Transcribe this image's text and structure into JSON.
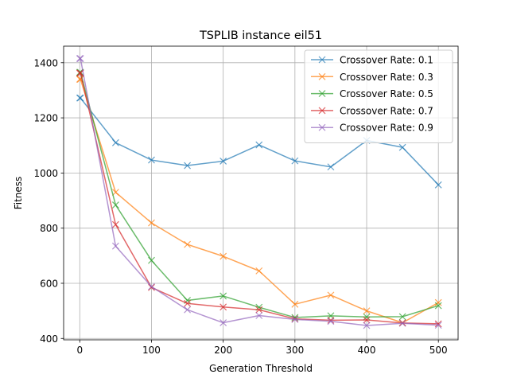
{
  "chart_data": {
    "type": "line",
    "title": "TSPLIB instance eil51",
    "xlabel": "Generation Threshold",
    "ylabel": "Fitness",
    "xlim": [
      -22.5,
      527.5
    ],
    "ylim": [
      395,
      1460
    ],
    "xticks": [
      0,
      100,
      200,
      300,
      400,
      500
    ],
    "yticks": [
      400,
      600,
      800,
      1000,
      1200,
      1400
    ],
    "grid": true,
    "legend_position": "top-right",
    "marker": "x",
    "x": [
      0,
      1,
      50,
      100,
      150,
      200,
      250,
      300,
      350,
      400,
      450,
      500
    ],
    "series": [
      {
        "name": "Crossover Rate: 0.1",
        "color": "#1f77b4",
        "values": [
          1272,
          1272,
          1110,
          1047,
          1027,
          1043,
          1102,
          1044,
          1022,
          1118,
          1093,
          957
        ]
      },
      {
        "name": "Crossover Rate: 0.3",
        "color": "#ff7f0e",
        "values": [
          1340,
          1340,
          930,
          819,
          741,
          698,
          645,
          524,
          557,
          500,
          457,
          530
        ]
      },
      {
        "name": "Crossover Rate: 0.5",
        "color": "#2ca02c",
        "values": [
          1365,
          1365,
          884,
          683,
          538,
          554,
          513,
          476,
          482,
          478,
          479,
          519
        ]
      },
      {
        "name": "Crossover Rate: 0.7",
        "color": "#d62728",
        "values": [
          1362,
          1362,
          813,
          585,
          527,
          514,
          504,
          471,
          466,
          467,
          456,
          453
        ]
      },
      {
        "name": "Crossover Rate: 0.9",
        "color": "#9467bd",
        "values": [
          1415,
          1415,
          735,
          588,
          504,
          457,
          483,
          469,
          462,
          447,
          455,
          448
        ]
      }
    ]
  }
}
